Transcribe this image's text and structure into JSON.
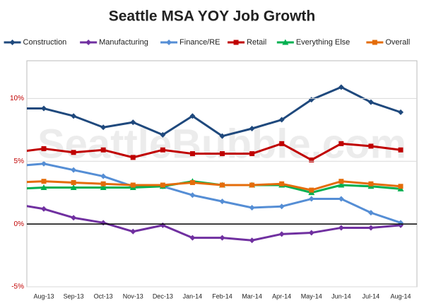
{
  "chart_data": {
    "type": "line",
    "title": "Seattle MSA YOY Job Growth",
    "watermark": "SeattleBubble.com",
    "categories": [
      null,
      "Aug-13",
      "Sep-13",
      "Oct-13",
      "Nov-13",
      "Dec-13",
      "Jan-14",
      "Feb-14",
      "Mar-14",
      "Apr-14",
      "May-14",
      "Jun-14",
      "Jul-14",
      "Aug-14"
    ],
    "series": [
      {
        "name": "Construction",
        "color": "#1f497d",
        "marker": "diamond",
        "values": [
          9.2,
          9.2,
          8.6,
          7.7,
          8.1,
          7.1,
          8.6,
          7.0,
          7.6,
          8.3,
          9.9,
          10.9,
          9.7,
          8.9
        ]
      },
      {
        "name": "Manufacturing",
        "color": "#7030a0",
        "marker": "diamond",
        "values": [
          1.6,
          1.2,
          0.5,
          0.1,
          -0.6,
          -0.1,
          -1.1,
          -1.1,
          -1.3,
          -0.8,
          -0.7,
          -0.3,
          -0.3,
          -0.1
        ]
      },
      {
        "name": "Finance/RE",
        "color": "#558ed5",
        "marker": "diamond",
        "values": [
          4.6,
          4.8,
          4.3,
          3.8,
          3.0,
          3.0,
          2.3,
          1.8,
          1.3,
          1.4,
          2.0,
          2.0,
          0.9,
          0.1
        ]
      },
      {
        "name": "Retail",
        "color": "#c00000",
        "marker": "square",
        "values": [
          5.7,
          6.0,
          5.7,
          5.9,
          5.3,
          5.9,
          5.6,
          5.6,
          5.6,
          6.4,
          5.1,
          6.4,
          6.2,
          5.9
        ]
      },
      {
        "name": "Everything Else",
        "color": "#00b050",
        "marker": "triangle",
        "values": [
          2.8,
          2.9,
          2.9,
          2.9,
          2.9,
          3.0,
          3.4,
          3.1,
          3.1,
          3.1,
          2.5,
          3.1,
          3.0,
          2.8
        ]
      },
      {
        "name": "Overall",
        "color": "#e46c0a",
        "marker": "square",
        "values": [
          3.3,
          3.4,
          3.3,
          3.2,
          3.1,
          3.1,
          3.3,
          3.1,
          3.1,
          3.2,
          2.7,
          3.4,
          3.2,
          3.0
        ]
      }
    ],
    "ylim": [
      -5,
      13
    ],
    "yticks": [
      {
        "value": -5,
        "label": "-5%"
      },
      {
        "value": 0,
        "label": "0%"
      },
      {
        "value": 5,
        "label": "5%"
      },
      {
        "value": 10,
        "label": "10%"
      }
    ],
    "grid": true,
    "zero_line": true,
    "legend": "top"
  }
}
